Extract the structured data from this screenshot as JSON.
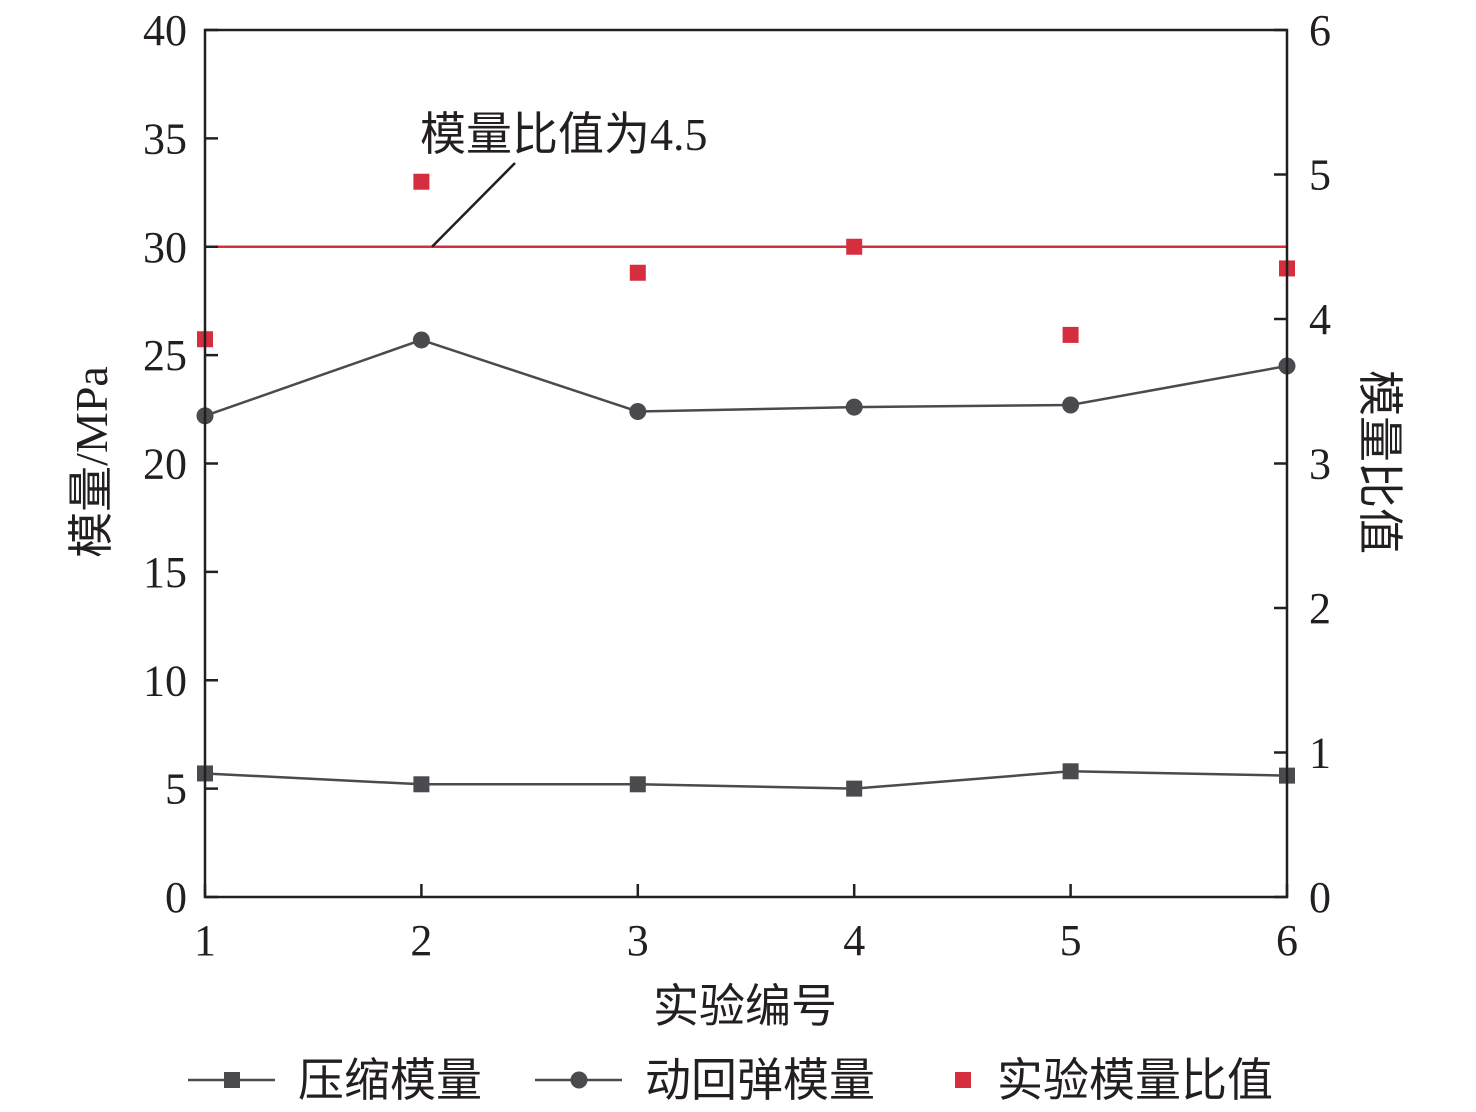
{
  "chart_data": {
    "type": "line",
    "xlabel": "实验编号",
    "ylabel_left": "模量/MPa",
    "ylabel_right": "模量比值",
    "x": [
      1,
      2,
      3,
      4,
      5,
      6
    ],
    "xlim": [
      1,
      6
    ],
    "ylim_left": [
      0,
      40
    ],
    "ylim_right": [
      0,
      6
    ],
    "xticks": [
      "1",
      "2",
      "3",
      "4",
      "5",
      "6"
    ],
    "yticks_left": [
      "0",
      "5",
      "10",
      "15",
      "20",
      "25",
      "30",
      "35",
      "40"
    ],
    "yticks_right": [
      "0",
      "1",
      "2",
      "3",
      "4",
      "5",
      "6"
    ],
    "grid": false,
    "legend_position": "bottom",
    "series": [
      {
        "name": "压缩模量",
        "axis": "left",
        "marker": "square",
        "color": "#4a4a4f",
        "values": [
          5.7,
          5.2,
          5.2,
          5.0,
          5.8,
          5.6
        ]
      },
      {
        "name": "动回弹模量",
        "axis": "left",
        "marker": "circle",
        "color": "#4a4a4f",
        "values": [
          22.2,
          25.7,
          22.4,
          22.6,
          22.7,
          24.5
        ]
      },
      {
        "name": "实验模量比值",
        "axis": "right",
        "marker": "square",
        "line": false,
        "color": "#d42e3f",
        "values": [
          3.86,
          4.95,
          4.32,
          4.5,
          3.89,
          4.35
        ]
      }
    ],
    "reference_line": {
      "axis": "right",
      "value": 4.5,
      "color": "#d42e3f",
      "label": "模量比值为4.5"
    }
  }
}
